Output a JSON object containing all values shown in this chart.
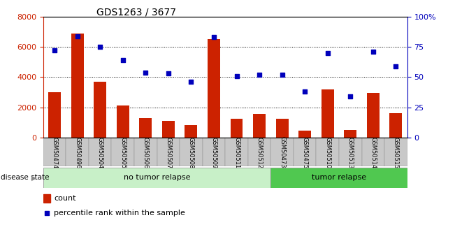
{
  "title": "GDS1263 / 3677",
  "samples": [
    "GSM50474",
    "GSM50496",
    "GSM50504",
    "GSM50505",
    "GSM50506",
    "GSM50507",
    "GSM50508",
    "GSM50509",
    "GSM50511",
    "GSM50512",
    "GSM50473",
    "GSM50475",
    "GSM50510",
    "GSM50513",
    "GSM50514",
    "GSM50515"
  ],
  "counts": [
    3000,
    6900,
    3700,
    2100,
    1300,
    1100,
    800,
    6500,
    1250,
    1550,
    1250,
    450,
    3200,
    500,
    2950,
    1600
  ],
  "percentiles": [
    72,
    84,
    75,
    64,
    54,
    53,
    46,
    83,
    51,
    52,
    52,
    38,
    70,
    34,
    71,
    59
  ],
  "groups": [
    {
      "label": "no tumor relapse",
      "count": 10,
      "color": "#C8F0C8"
    },
    {
      "label": "tumor relapse",
      "count": 6,
      "color": "#50C850"
    }
  ],
  "ylim_left": [
    0,
    8000
  ],
  "ylim_right": [
    0,
    100
  ],
  "yticks_left": [
    0,
    2000,
    4000,
    6000,
    8000
  ],
  "yticks_right": [
    0,
    25,
    50,
    75,
    100
  ],
  "ytick_right_labels": [
    "0",
    "25",
    "50",
    "75",
    "100%"
  ],
  "bar_color": "#CC2200",
  "dot_color": "#0000BB",
  "bg_color": "#FFFFFF",
  "tick_bg": "#C8C8C8",
  "disease_state_label": "disease state",
  "legend_count": "count",
  "legend_percentile": "percentile rank within the sample",
  "no_relapse_count": 10,
  "relapse_count": 6
}
